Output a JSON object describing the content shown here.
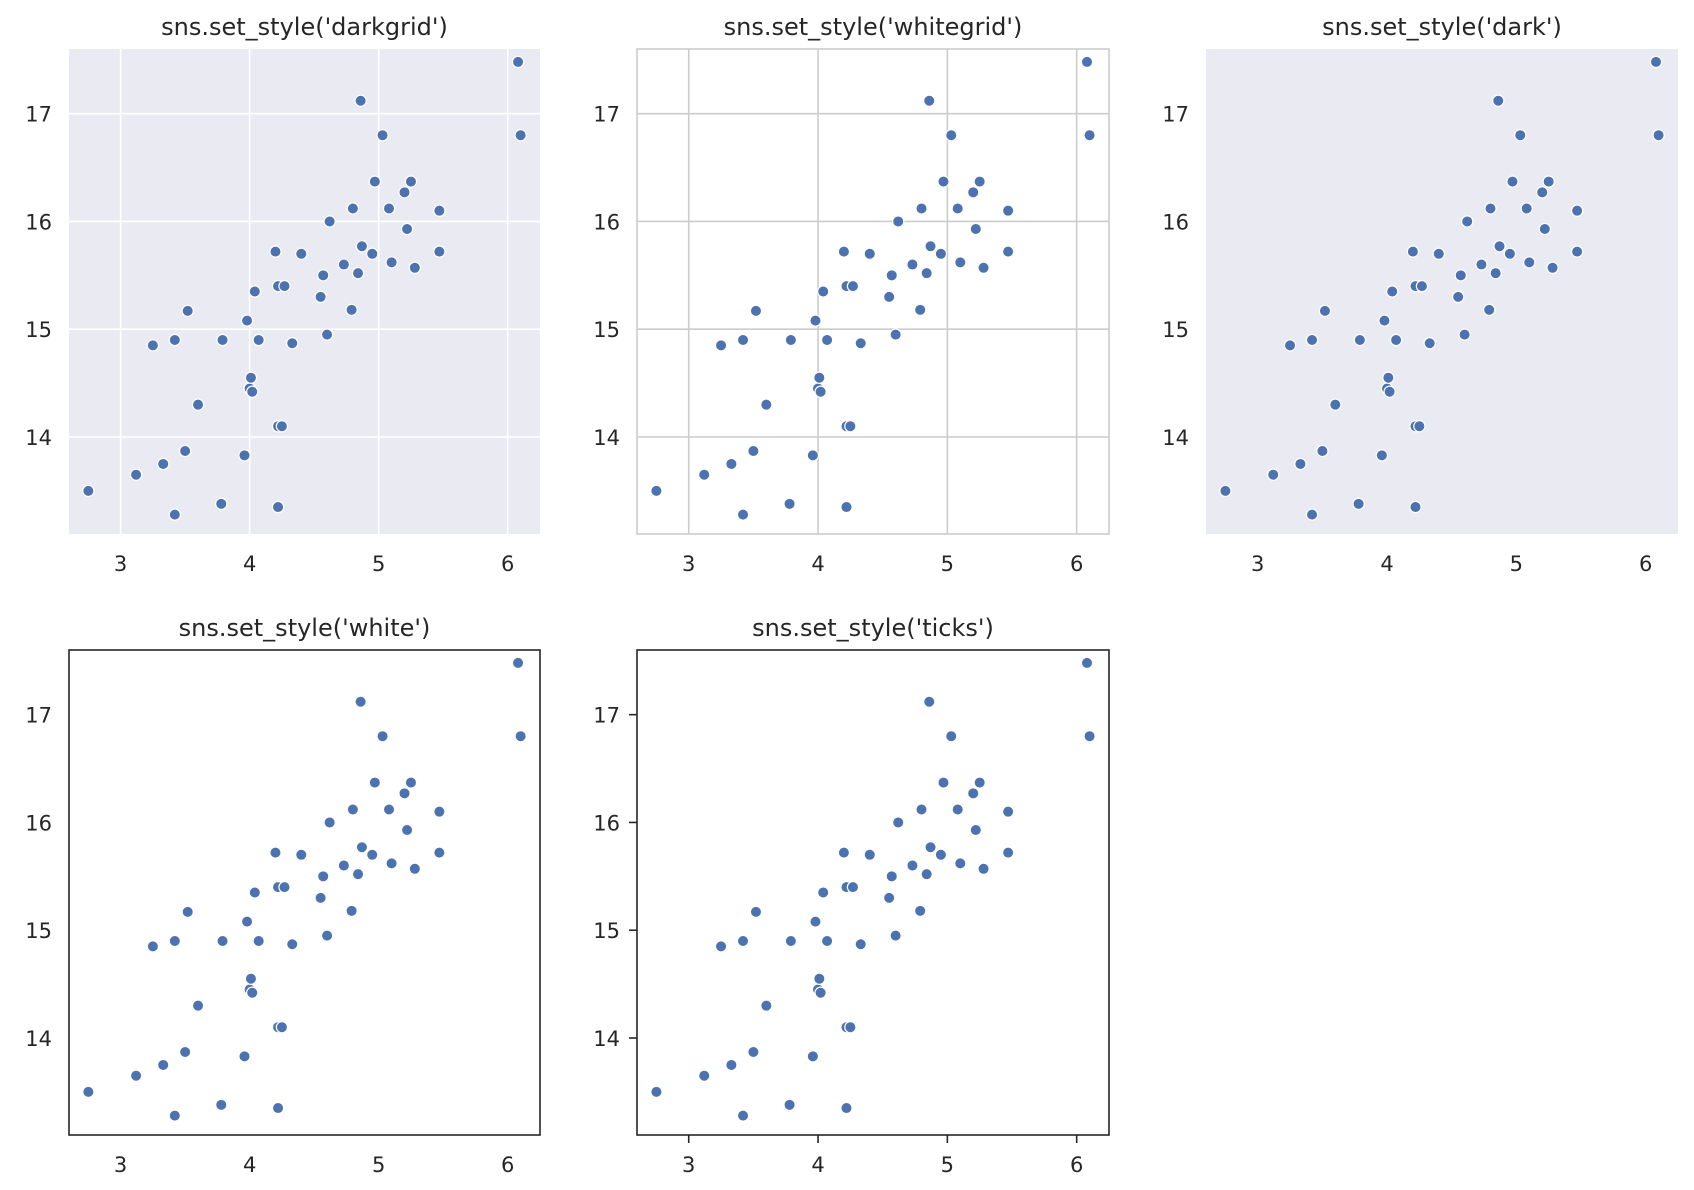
{
  "colors": {
    "marker": "#4c72b0",
    "marker_edge": "#ffffff",
    "dark_bg": "#eaeaf2",
    "grid_on_dark": "#ffffff",
    "grid_on_white": "#cccccc",
    "spine_light": "#cccccc",
    "spine_dark": "#262626",
    "text": "#262626"
  },
  "chart_data": [
    {
      "type": "scatter",
      "title": "sns.set_style('darkgrid')",
      "style": "darkgrid",
      "xlim": [
        2.6,
        6.25
      ],
      "ylim": [
        13.1,
        17.6
      ],
      "xticks": [
        "3",
        "4",
        "5",
        "6"
      ],
      "yticks": [
        "14",
        "15",
        "16",
        "17"
      ],
      "grid": true,
      "background": "dark",
      "tick_marks": false,
      "x": [
        2.75,
        3.12,
        3.25,
        3.33,
        3.42,
        3.42,
        3.5,
        3.52,
        3.6,
        3.78,
        3.79,
        3.96,
        3.98,
        4.0,
        4.01,
        4.02,
        4.04,
        4.07,
        4.2,
        4.22,
        4.22,
        4.22,
        4.25,
        4.27,
        4.33,
        4.4,
        4.55,
        4.57,
        4.6,
        4.62,
        4.73,
        4.79,
        4.8,
        4.84,
        4.86,
        4.87,
        4.95,
        4.97,
        5.03,
        5.08,
        5.1,
        5.2,
        5.22,
        5.25,
        5.28,
        5.47,
        5.47,
        6.08,
        6.1
      ],
      "y": [
        13.5,
        13.65,
        14.85,
        13.75,
        13.28,
        14.9,
        13.87,
        15.17,
        14.3,
        13.38,
        14.9,
        13.83,
        15.08,
        14.45,
        14.55,
        14.42,
        15.35,
        14.9,
        15.72,
        14.1,
        15.4,
        13.35,
        14.1,
        15.4,
        14.87,
        15.7,
        15.3,
        15.5,
        14.95,
        16.0,
        15.6,
        15.18,
        16.12,
        15.52,
        17.12,
        15.77,
        15.7,
        16.37,
        16.8,
        16.12,
        15.62,
        16.27,
        15.93,
        16.37,
        15.57,
        16.1,
        15.72,
        17.48,
        16.8
      ]
    },
    {
      "type": "scatter",
      "title": "sns.set_style('whitegrid')",
      "style": "whitegrid",
      "xlim": [
        2.6,
        6.25
      ],
      "ylim": [
        13.1,
        17.6
      ],
      "xticks": [
        "3",
        "4",
        "5",
        "6"
      ],
      "yticks": [
        "14",
        "15",
        "16",
        "17"
      ],
      "grid": true,
      "background": "white",
      "tick_marks": false,
      "x": [
        2.75,
        3.12,
        3.25,
        3.33,
        3.42,
        3.42,
        3.5,
        3.52,
        3.6,
        3.78,
        3.79,
        3.96,
        3.98,
        4.0,
        4.01,
        4.02,
        4.04,
        4.07,
        4.2,
        4.22,
        4.22,
        4.22,
        4.25,
        4.27,
        4.33,
        4.4,
        4.55,
        4.57,
        4.6,
        4.62,
        4.73,
        4.79,
        4.8,
        4.84,
        4.86,
        4.87,
        4.95,
        4.97,
        5.03,
        5.08,
        5.1,
        5.2,
        5.22,
        5.25,
        5.28,
        5.47,
        5.47,
        6.08,
        6.1
      ],
      "y": [
        13.5,
        13.65,
        14.85,
        13.75,
        13.28,
        14.9,
        13.87,
        15.17,
        14.3,
        13.38,
        14.9,
        13.83,
        15.08,
        14.45,
        14.55,
        14.42,
        15.35,
        14.9,
        15.72,
        14.1,
        15.4,
        13.35,
        14.1,
        15.4,
        14.87,
        15.7,
        15.3,
        15.5,
        14.95,
        16.0,
        15.6,
        15.18,
        16.12,
        15.52,
        17.12,
        15.77,
        15.7,
        16.37,
        16.8,
        16.12,
        15.62,
        16.27,
        15.93,
        16.37,
        15.57,
        16.1,
        15.72,
        17.48,
        16.8
      ]
    },
    {
      "type": "scatter",
      "title": "sns.set_style('dark')",
      "style": "dark",
      "xlim": [
        2.6,
        6.25
      ],
      "ylim": [
        13.1,
        17.6
      ],
      "xticks": [
        "3",
        "4",
        "5",
        "6"
      ],
      "yticks": [
        "14",
        "15",
        "16",
        "17"
      ],
      "grid": false,
      "background": "dark",
      "tick_marks": false,
      "x": [
        2.75,
        3.12,
        3.25,
        3.33,
        3.42,
        3.42,
        3.5,
        3.52,
        3.6,
        3.78,
        3.79,
        3.96,
        3.98,
        4.0,
        4.01,
        4.02,
        4.04,
        4.07,
        4.2,
        4.22,
        4.22,
        4.22,
        4.25,
        4.27,
        4.33,
        4.4,
        4.55,
        4.57,
        4.6,
        4.62,
        4.73,
        4.79,
        4.8,
        4.84,
        4.86,
        4.87,
        4.95,
        4.97,
        5.03,
        5.08,
        5.1,
        5.2,
        5.22,
        5.25,
        5.28,
        5.47,
        5.47,
        6.08,
        6.1
      ],
      "y": [
        13.5,
        13.65,
        14.85,
        13.75,
        13.28,
        14.9,
        13.87,
        15.17,
        14.3,
        13.38,
        14.9,
        13.83,
        15.08,
        14.45,
        14.55,
        14.42,
        15.35,
        14.9,
        15.72,
        14.1,
        15.4,
        13.35,
        14.1,
        15.4,
        14.87,
        15.7,
        15.3,
        15.5,
        14.95,
        16.0,
        15.6,
        15.18,
        16.12,
        15.52,
        17.12,
        15.77,
        15.7,
        16.37,
        16.8,
        16.12,
        15.62,
        16.27,
        15.93,
        16.37,
        15.57,
        16.1,
        15.72,
        17.48,
        16.8
      ]
    },
    {
      "type": "scatter",
      "title": "sns.set_style('white')",
      "style": "white",
      "xlim": [
        2.6,
        6.25
      ],
      "ylim": [
        13.1,
        17.6
      ],
      "xticks": [
        "3",
        "4",
        "5",
        "6"
      ],
      "yticks": [
        "14",
        "15",
        "16",
        "17"
      ],
      "grid": false,
      "background": "white",
      "tick_marks": false,
      "x": [
        2.75,
        3.12,
        3.25,
        3.33,
        3.42,
        3.42,
        3.5,
        3.52,
        3.6,
        3.78,
        3.79,
        3.96,
        3.98,
        4.0,
        4.01,
        4.02,
        4.04,
        4.07,
        4.2,
        4.22,
        4.22,
        4.22,
        4.25,
        4.27,
        4.33,
        4.4,
        4.55,
        4.57,
        4.6,
        4.62,
        4.73,
        4.79,
        4.8,
        4.84,
        4.86,
        4.87,
        4.95,
        4.97,
        5.03,
        5.08,
        5.1,
        5.2,
        5.22,
        5.25,
        5.28,
        5.47,
        5.47,
        6.08,
        6.1
      ],
      "y": [
        13.5,
        13.65,
        14.85,
        13.75,
        13.28,
        14.9,
        13.87,
        15.17,
        14.3,
        13.38,
        14.9,
        13.83,
        15.08,
        14.45,
        14.55,
        14.42,
        15.35,
        14.9,
        15.72,
        14.1,
        15.4,
        13.35,
        14.1,
        15.4,
        14.87,
        15.7,
        15.3,
        15.5,
        14.95,
        16.0,
        15.6,
        15.18,
        16.12,
        15.52,
        17.12,
        15.77,
        15.7,
        16.37,
        16.8,
        16.12,
        15.62,
        16.27,
        15.93,
        16.37,
        15.57,
        16.1,
        15.72,
        17.48,
        16.8
      ]
    },
    {
      "type": "scatter",
      "title": "sns.set_style('ticks')",
      "style": "ticks",
      "xlim": [
        2.6,
        6.25
      ],
      "ylim": [
        13.1,
        17.6
      ],
      "xticks": [
        "3",
        "4",
        "5",
        "6"
      ],
      "yticks": [
        "14",
        "15",
        "16",
        "17"
      ],
      "grid": false,
      "background": "white",
      "tick_marks": true,
      "x": [
        2.75,
        3.12,
        3.25,
        3.33,
        3.42,
        3.42,
        3.5,
        3.52,
        3.6,
        3.78,
        3.79,
        3.96,
        3.98,
        4.0,
        4.01,
        4.02,
        4.04,
        4.07,
        4.2,
        4.22,
        4.22,
        4.22,
        4.25,
        4.27,
        4.33,
        4.4,
        4.55,
        4.57,
        4.6,
        4.62,
        4.73,
        4.79,
        4.8,
        4.84,
        4.86,
        4.87,
        4.95,
        4.97,
        5.03,
        5.08,
        5.1,
        5.2,
        5.22,
        5.25,
        5.28,
        5.47,
        5.47,
        6.08,
        6.1
      ],
      "y": [
        13.5,
        13.65,
        14.85,
        13.75,
        13.28,
        14.9,
        13.87,
        15.17,
        14.3,
        13.38,
        14.9,
        13.83,
        15.08,
        14.45,
        14.55,
        14.42,
        15.35,
        14.9,
        15.72,
        14.1,
        15.4,
        13.35,
        14.1,
        15.4,
        14.87,
        15.7,
        15.3,
        15.5,
        14.95,
        16.0,
        15.6,
        15.18,
        16.12,
        15.52,
        17.12,
        15.77,
        15.7,
        16.37,
        16.8,
        16.12,
        15.62,
        16.27,
        15.93,
        16.37,
        15.57,
        16.1,
        15.72,
        17.48,
        16.8
      ]
    }
  ]
}
